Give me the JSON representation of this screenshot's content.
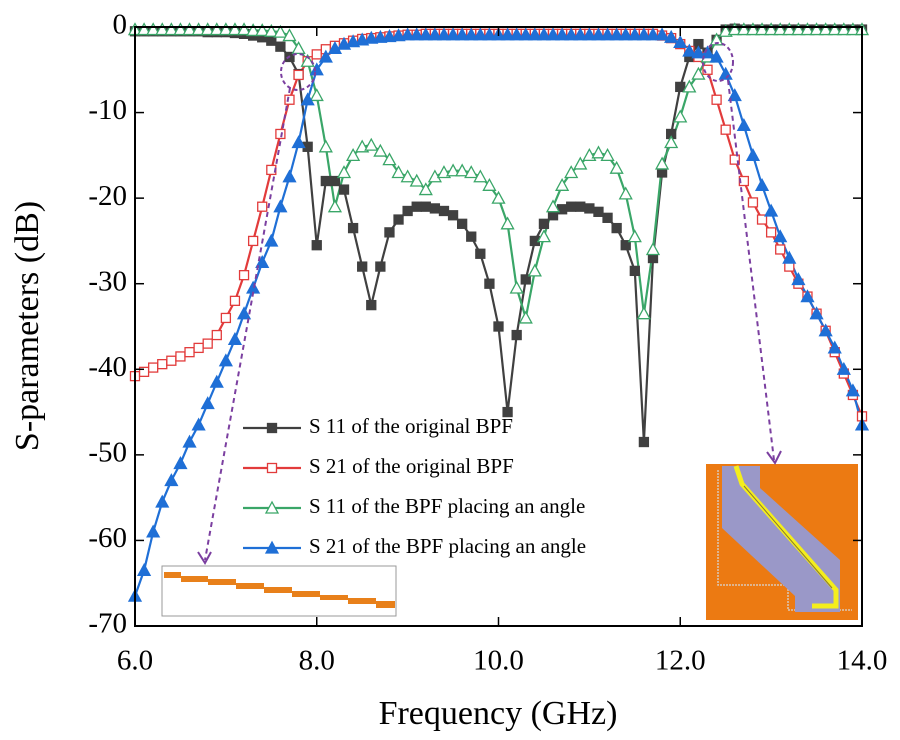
{
  "chart_data": {
    "type": "line",
    "xlabel": "Frequency (GHz)",
    "ylabel": "S-parameters (dB)",
    "xlim": [
      6,
      14
    ],
    "ylim": [
      -70,
      0
    ],
    "xticks": [
      {
        "value": 6,
        "label": "6.0"
      },
      {
        "value": 8,
        "label": "8.0"
      },
      {
        "value": 10,
        "label": "10.0"
      },
      {
        "value": 12,
        "label": "12.0"
      },
      {
        "value": 14,
        "label": "14.0"
      }
    ],
    "yticks": [
      0,
      -10,
      -20,
      -30,
      -40,
      -50,
      -60,
      -70
    ],
    "legend": "lower center",
    "x": [
      6.0,
      6.1,
      6.2,
      6.3,
      6.4,
      6.5,
      6.6,
      6.7,
      6.8,
      6.9,
      7.0,
      7.1,
      7.2,
      7.3,
      7.4,
      7.5,
      7.6,
      7.7,
      7.8,
      7.9,
      8.0,
      8.1,
      8.2,
      8.3,
      8.4,
      8.5,
      8.6,
      8.7,
      8.8,
      8.9,
      9.0,
      9.1,
      9.2,
      9.3,
      9.4,
      9.5,
      9.6,
      9.7,
      9.8,
      9.9,
      10.0,
      10.1,
      10.2,
      10.3,
      10.4,
      10.5,
      10.6,
      10.7,
      10.8,
      10.9,
      11.0,
      11.1,
      11.2,
      11.3,
      11.4,
      11.5,
      11.6,
      11.7,
      11.8,
      11.9,
      12.0,
      12.1,
      12.2,
      12.3,
      12.4,
      12.5,
      12.6,
      12.7,
      12.8,
      12.9,
      13.0,
      13.1,
      13.2,
      13.3,
      13.4,
      13.5,
      13.6,
      13.7,
      13.8,
      13.9,
      14.0
    ],
    "series": [
      {
        "name": "S 11 of the original BPF",
        "color": "#404040",
        "marker": "square",
        "marker_fill": true,
        "values": [
          -0.5,
          -0.5,
          -0.5,
          -0.5,
          -0.5,
          -0.5,
          -0.5,
          -0.5,
          -0.6,
          -0.6,
          -0.6,
          -0.7,
          -0.8,
          -1.0,
          -1.2,
          -1.6,
          -2.3,
          -3.5,
          -5.5,
          -14,
          -25.5,
          -18,
          -18,
          -19,
          -23.5,
          -28,
          -32.5,
          -28,
          -24,
          -22.5,
          -21.5,
          -21,
          -21,
          -21.2,
          -21.5,
          -22,
          -23,
          -24.5,
          -26.5,
          -30,
          -35,
          -45,
          -36,
          -29.5,
          -25,
          -23,
          -22,
          -21.3,
          -21,
          -21,
          -21.2,
          -21.6,
          -22.3,
          -23.5,
          -25.5,
          -28.5,
          -48.5,
          -27,
          -17,
          -12.5,
          -7,
          -3.5,
          -2,
          -3,
          -1.5,
          -0.3,
          -0.2,
          -0.3,
          -0.3,
          -0.3,
          -0.3,
          -0.3,
          -0.3,
          -0.3,
          -0.3,
          -0.3,
          -0.3,
          -0.3,
          -0.3,
          -0.3,
          -0.3
        ]
      },
      {
        "name": "S 21 of the original BPF",
        "color": "#e23b3b",
        "marker": "square",
        "marker_fill": false,
        "values": [
          -40.8,
          -40.3,
          -39.8,
          -39.4,
          -39,
          -38.5,
          -38,
          -37.5,
          -37,
          -36,
          -34,
          -32,
          -29,
          -25,
          -21,
          -16.7,
          -12.5,
          -8.5,
          -5.6,
          -4,
          -3.2,
          -2.6,
          -2.2,
          -1.9,
          -1.6,
          -1.4,
          -1.3,
          -1.2,
          -1.1,
          -1.0,
          -0.9,
          -0.9,
          -0.8,
          -0.8,
          -0.8,
          -0.8,
          -0.8,
          -0.8,
          -0.8,
          -0.8,
          -0.8,
          -0.8,
          -0.8,
          -0.8,
          -0.8,
          -0.8,
          -0.8,
          -0.8,
          -0.8,
          -0.8,
          -0.8,
          -0.8,
          -0.8,
          -0.8,
          -0.8,
          -0.8,
          -0.8,
          -0.8,
          -1.0,
          -1.3,
          -2.0,
          -2.8,
          -3.5,
          -5,
          -8.5,
          -12,
          -15.5,
          -18,
          -20.5,
          -22.5,
          -24,
          -26,
          -28,
          -30,
          -31.5,
          -33.5,
          -35.5,
          -38,
          -40.5,
          -43,
          -45.5
        ]
      },
      {
        "name": "S 11 of the BPF placing an angle",
        "color": "#3aa668",
        "marker": "triangle",
        "marker_fill": false,
        "values": [
          -0.3,
          -0.3,
          -0.3,
          -0.3,
          -0.3,
          -0.3,
          -0.3,
          -0.3,
          -0.3,
          -0.3,
          -0.3,
          -0.3,
          -0.3,
          -0.4,
          -0.4,
          -0.5,
          -0.6,
          -1.0,
          -2.5,
          -4,
          -8,
          -14,
          -21,
          -17,
          -15,
          -14,
          -13.8,
          -14.5,
          -15.5,
          -17,
          -17.5,
          -18,
          -19,
          -17.5,
          -17,
          -16.8,
          -16.8,
          -17,
          -17.5,
          -18.5,
          -20,
          -23,
          -30.5,
          -34,
          -28.5,
          -24.5,
          -21,
          -18.5,
          -17,
          -16,
          -15,
          -14.7,
          -15,
          -16.5,
          -19.5,
          -24.5,
          -33.5,
          -26,
          -16,
          -13.5,
          -10.5,
          -7,
          -5.5,
          -3.5,
          -1.5,
          -0.5,
          -0.3,
          -0.3,
          -0.3,
          -0.3,
          -0.3,
          -0.3,
          -0.3,
          -0.3,
          -0.3,
          -0.3,
          -0.3,
          -0.3,
          -0.3,
          -0.3,
          -0.3
        ]
      },
      {
        "name": "S 21 of the BPF placing an angle",
        "color": "#1f6fd6",
        "marker": "triangle",
        "marker_fill": true,
        "values": [
          -66.5,
          -63.5,
          -59,
          -55.5,
          -53,
          -51,
          -48.5,
          -46.5,
          -44,
          -41.5,
          -39,
          -36.5,
          -33.5,
          -30.5,
          -27.5,
          -25,
          -21,
          -17.5,
          -13.5,
          -8.5,
          -5,
          -3.5,
          -2.5,
          -2,
          -1.7,
          -1.5,
          -1.3,
          -1.2,
          -1.1,
          -1.0,
          -0.9,
          -0.9,
          -0.9,
          -0.9,
          -0.9,
          -0.9,
          -0.9,
          -0.9,
          -0.9,
          -0.9,
          -0.9,
          -0.9,
          -0.9,
          -0.9,
          -0.9,
          -0.9,
          -0.9,
          -0.9,
          -0.9,
          -0.9,
          -0.9,
          -0.9,
          -0.9,
          -0.9,
          -0.9,
          -0.9,
          -0.9,
          -0.9,
          -0.9,
          -1.2,
          -1.8,
          -2.8,
          -3,
          -3,
          -3.5,
          -5.5,
          -8,
          -11.5,
          -15,
          -18.5,
          -21.5,
          -24.5,
          -27,
          -29.5,
          -31.5,
          -33.5,
          -35.5,
          -37.5,
          -40,
          -42.5,
          -46.5
        ]
      }
    ]
  }
}
